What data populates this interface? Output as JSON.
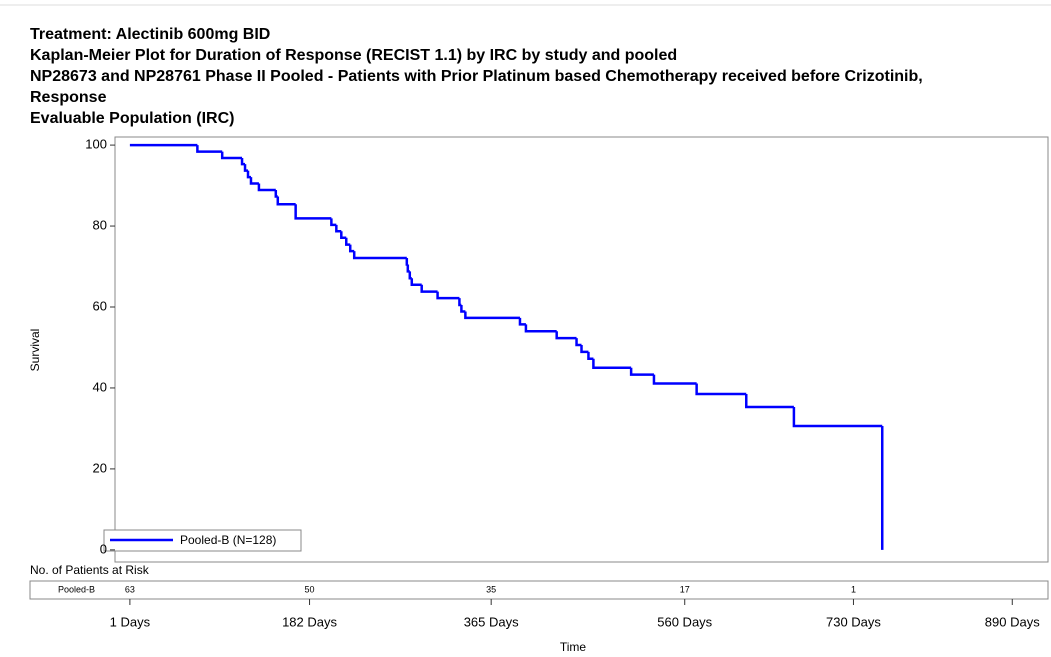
{
  "chart_data": {
    "type": "step",
    "title": [
      "Treatment: Alectinib 600mg BID",
      "Kaplan-Meier Plot for Duration of Response (RECIST 1.1) by IRC by study and pooled",
      "NP28673 and NP28761 Phase II Pooled - Patients with Prior Platinum based Chemotherapy received before Crizotinib,",
      "Response",
      "Evaluable Population (IRC)"
    ],
    "x_label": "Time",
    "y_label": "Survival",
    "xlim": [
      -14,
      926
    ],
    "ylim": [
      -3,
      102
    ],
    "xticks": [
      {
        "value": 1,
        "label": "1 Days"
      },
      {
        "value": 182,
        "label": "182 Days"
      },
      {
        "value": 365,
        "label": "365 Days"
      },
      {
        "value": 560,
        "label": "560 Days"
      },
      {
        "value": 730,
        "label": "730 Days"
      },
      {
        "value": 890,
        "label": "890 Days"
      }
    ],
    "yticks": [
      0,
      20,
      40,
      60,
      80,
      100
    ],
    "legend": "lower left",
    "series": [
      {
        "name": "Pooled-B (N=128)",
        "color": "#0000ff",
        "x": [
          1,
          69,
          94,
          114,
          117,
          120,
          123,
          131,
          148,
          150,
          168,
          204,
          209,
          214,
          219,
          223,
          227,
          280,
          281,
          283,
          285,
          295,
          311,
          333,
          335,
          339,
          394,
          400,
          431,
          451,
          456,
          463,
          468,
          506,
          529,
          572,
          622,
          670,
          759
        ],
        "values": [
          100,
          98.4,
          96.8,
          95.3,
          93.7,
          92.1,
          90.5,
          88.9,
          87.3,
          85.4,
          81.9,
          80.3,
          78.7,
          77.1,
          75.4,
          73.8,
          72.1,
          70.5,
          68.8,
          67.1,
          65.5,
          63.8,
          62.2,
          60.5,
          58.9,
          57.3,
          55.7,
          54.0,
          52.3,
          50.6,
          48.9,
          47.2,
          45.0,
          43.3,
          41.1,
          38.5,
          35.3,
          30.6,
          0
        ]
      }
    ],
    "at_risk": {
      "label": "No. of Patients at Risk",
      "group": "Pooled-B",
      "values": [
        63,
        50,
        35,
        17,
        1
      ]
    }
  }
}
